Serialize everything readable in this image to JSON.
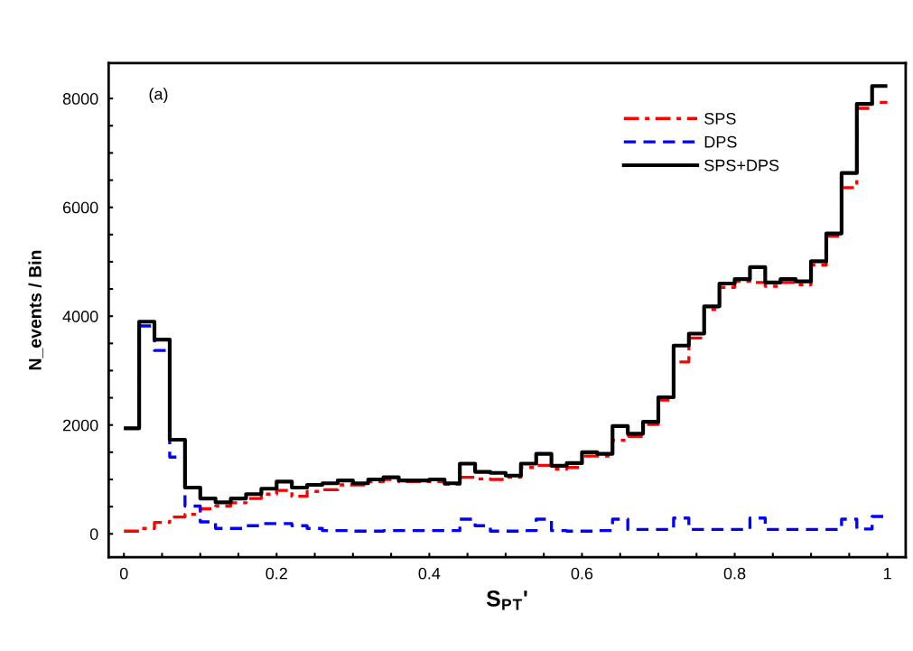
{
  "chart_data": {
    "type": "histogram",
    "xlabel": "S$_{P}$$_{T}$'",
    "ylabel": "N_events / Bin",
    "annotations": [
      "(a)"
    ],
    "bins": [
      0,
      0.02,
      0.04,
      0.06,
      0.08,
      0.1,
      0.12,
      0.14,
      0.16,
      0.18,
      0.2,
      0.22,
      0.24,
      0.26,
      0.28,
      0.3,
      0.32,
      0.34,
      0.36,
      0.38,
      0.4,
      0.42,
      0.44,
      0.46,
      0.48,
      0.5,
      0.52,
      0.54,
      0.56,
      0.58,
      0.6,
      0.62,
      0.64,
      0.66,
      0.68,
      0.7,
      0.72,
      0.74,
      0.76,
      0.78,
      0.8,
      0.82,
      0.84,
      0.86,
      0.88,
      0.9,
      0.92,
      0.94,
      0.96,
      0.98,
      1
    ],
    "series": [
      {
        "name": "SPS",
        "color": "#ff0000",
        "line_style": "dashdot",
        "values": [
          50,
          100,
          210,
          310,
          360,
          460,
          510,
          570,
          650,
          730,
          800,
          690,
          780,
          810,
          900,
          900,
          960,
          1000,
          960,
          960,
          960,
          910,
          1040,
          1010,
          1000,
          1040,
          1220,
          1260,
          1190,
          1220,
          1430,
          1430,
          1720,
          1790,
          2010,
          2460,
          3160,
          3600,
          4120,
          4530,
          4640,
          4620,
          4550,
          4620,
          4580,
          4940,
          5470,
          6360,
          7820,
          7930
        ]
      },
      {
        "name": "DPS",
        "color": "#0000ff",
        "line_style": "dashed",
        "values": [
          1940,
          3820,
          3370,
          1410,
          510,
          220,
          100,
          100,
          150,
          190,
          190,
          150,
          100,
          60,
          60,
          50,
          50,
          60,
          60,
          60,
          60,
          60,
          270,
          150,
          50,
          50,
          60,
          270,
          60,
          50,
          50,
          60,
          270,
          80,
          80,
          80,
          290,
          80,
          80,
          80,
          80,
          290,
          80,
          80,
          80,
          80,
          80,
          270,
          90,
          320
        ]
      },
      {
        "name": "SPS+DPS",
        "color": "#000000",
        "line_style": "solid",
        "values": [
          1940,
          3900,
          3570,
          1730,
          850,
          650,
          580,
          650,
          730,
          830,
          960,
          850,
          900,
          930,
          980,
          930,
          1000,
          1040,
          980,
          980,
          1000,
          930,
          1290,
          1140,
          1120,
          1070,
          1290,
          1470,
          1250,
          1300,
          1500,
          1470,
          1980,
          1840,
          2060,
          2510,
          3460,
          3680,
          4180,
          4600,
          4680,
          4900,
          4620,
          4680,
          4640,
          5010,
          5520,
          6630,
          7900,
          8230
        ]
      }
    ],
    "xlim": [
      -0.02,
      1.024
    ],
    "ylim": [
      -430,
      8650
    ],
    "xticks": [
      0,
      {
        "value": 0.05,
        "label": null
      },
      {
        "value": 0.1,
        "label": null
      },
      {
        "value": 0.15,
        "label": null
      },
      0.2,
      {
        "value": 0.25,
        "label": null
      },
      {
        "value": 0.3,
        "label": null
      },
      {
        "value": 0.35,
        "label": null
      },
      0.4,
      {
        "value": 0.45,
        "label": null
      },
      {
        "value": 0.5,
        "label": null
      },
      {
        "value": 0.55,
        "label": null
      },
      0.6,
      {
        "value": 0.65,
        "label": null
      },
      {
        "value": 0.7,
        "label": null
      },
      {
        "value": 0.75,
        "label": null
      },
      0.8,
      {
        "value": 0.85,
        "label": null
      },
      {
        "value": 0.9,
        "label": null
      },
      {
        "value": 0.95,
        "label": null
      },
      1
    ],
    "yticks": [
      0,
      {
        "value": 500,
        "label": null
      },
      {
        "value": 1000,
        "label": null
      },
      {
        "value": 1500,
        "label": null
      },
      2000,
      {
        "value": 2500,
        "label": null
      },
      {
        "value": 3000,
        "label": null
      },
      {
        "value": 3500,
        "label": null
      },
      4000,
      {
        "value": 4500,
        "label": null
      },
      {
        "value": 5000,
        "label": null
      },
      {
        "value": 5500,
        "label": null
      },
      6000,
      {
        "value": 6500,
        "label": null
      },
      {
        "value": 7000,
        "label": null
      },
      {
        "value": 7500,
        "label": null
      },
      8000
    ],
    "grid": false,
    "legend": "top right"
  }
}
